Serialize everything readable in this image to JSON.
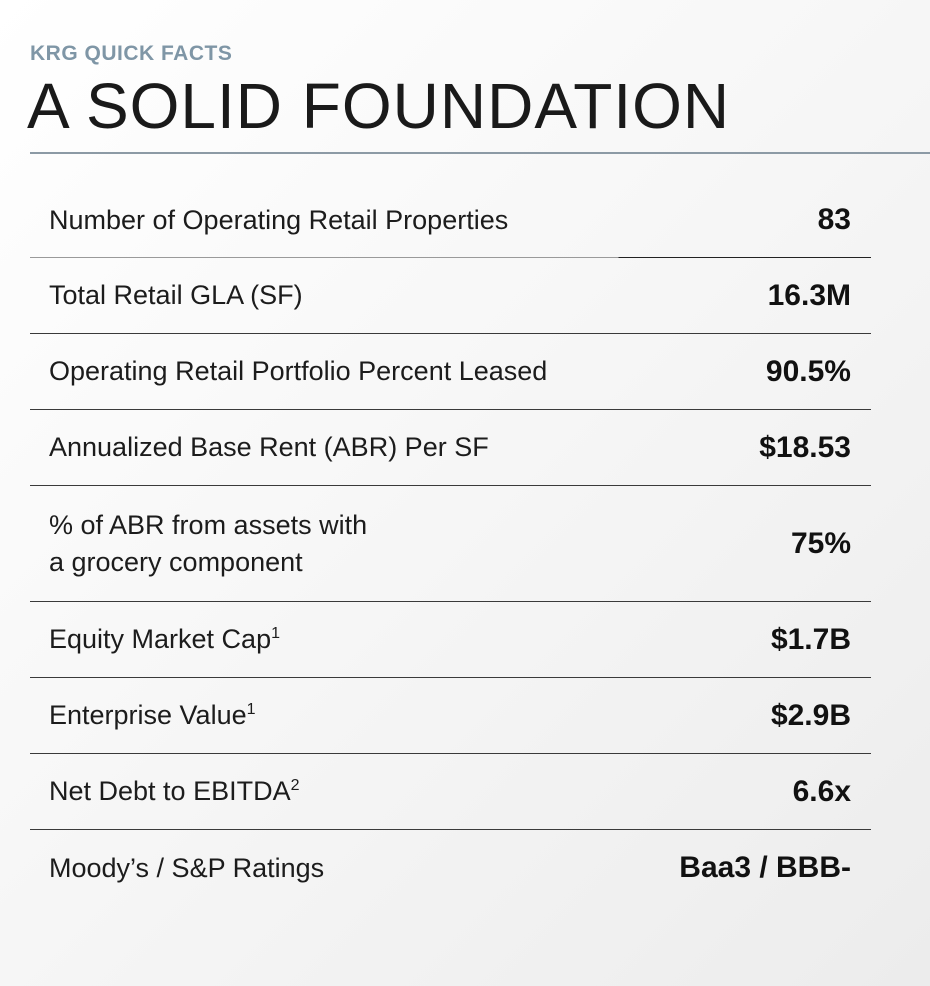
{
  "header": {
    "kicker": "KRG QUICK FACTS",
    "title": "A SOLID FOUNDATION"
  },
  "facts": [
    {
      "label": "Number of Operating Retail Properties",
      "sup": "",
      "value": "83"
    },
    {
      "label": "Total Retail GLA (SF)",
      "sup": "",
      "value": "16.3M"
    },
    {
      "label": "Operating Retail Portfolio Percent Leased",
      "sup": "",
      "value": "90.5%"
    },
    {
      "label": "Annualized Base Rent (ABR) Per SF",
      "sup": "",
      "value": "$18.53"
    },
    {
      "label_line1": "% of ABR from assets with",
      "label_line2": "a grocery component",
      "value": "75%"
    },
    {
      "label": "Equity Market Cap",
      "sup": "1",
      "value": "$1.7B"
    },
    {
      "label": "Enterprise Value",
      "sup": "1",
      "value": "$2.9B"
    },
    {
      "label": "Net Debt to EBITDA",
      "sup": "2",
      "value": "6.6x"
    },
    {
      "label": "Moody’s / S&P Ratings",
      "sup": "",
      "value": "Baa3 / BBB-"
    }
  ],
  "colors": {
    "kicker": "#7f96a6",
    "rule": "#8c9aa5",
    "text": "#111111"
  }
}
